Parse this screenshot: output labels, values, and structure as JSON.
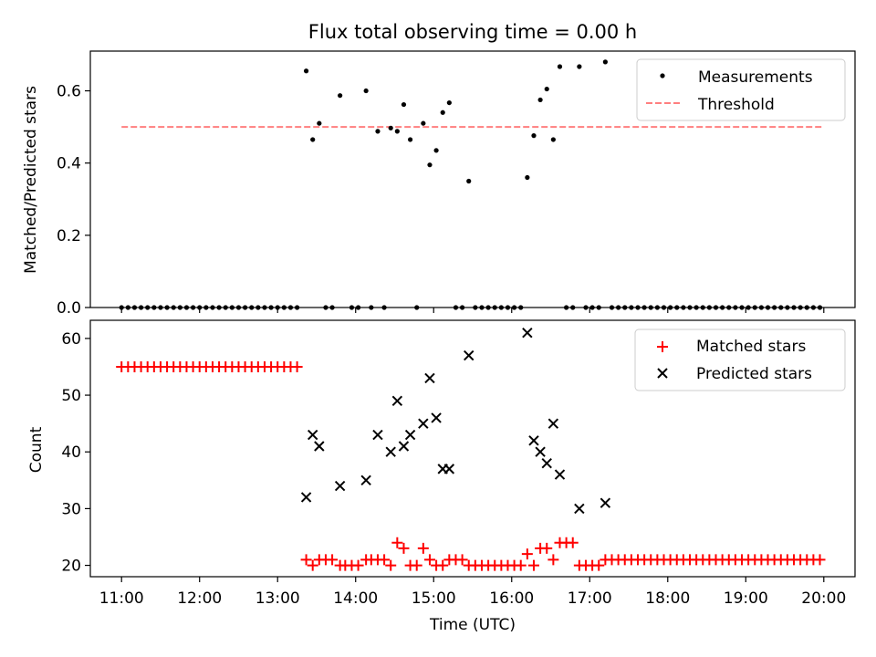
{
  "title": "Flux total observing time = 0.00 h",
  "colors": {
    "matched": "#ff0000",
    "predicted": "#000000",
    "measurement": "#000000",
    "threshold": "#ff7f7f"
  },
  "chart_data": [
    {
      "type": "scatter",
      "ylabel": "Matched/Predicted stars",
      "ylim": [
        0,
        0.71
      ],
      "yticks": [
        "0.0",
        "0.2",
        "0.4",
        "0.6"
      ],
      "xlim": [
        "10:36",
        "20:24"
      ],
      "legend_position": "top-right",
      "threshold": {
        "name": "Threshold",
        "value": 0.5,
        "x_range": [
          "11:00",
          "20:00"
        ]
      },
      "series": [
        {
          "name": "Measurements",
          "points_nonzero": [
            [
              "13:22",
              0.655
            ],
            [
              "13:27",
              0.465
            ],
            [
              "13:32",
              0.51
            ],
            [
              "13:48",
              0.587
            ],
            [
              "14:08",
              0.6
            ],
            [
              "14:17",
              0.488
            ],
            [
              "14:27",
              0.497
            ],
            [
              "14:32",
              0.488
            ],
            [
              "14:37",
              0.562
            ],
            [
              "14:42",
              0.465
            ],
            [
              "14:52",
              0.51
            ],
            [
              "14:57",
              0.395
            ],
            [
              "15:02",
              0.435
            ],
            [
              "15:07",
              0.54
            ],
            [
              "15:12",
              0.567
            ],
            [
              "15:27",
              0.35
            ],
            [
              "16:12",
              0.36
            ],
            [
              "16:17",
              0.476
            ],
            [
              "16:22",
              0.575
            ],
            [
              "16:27",
              0.605
            ],
            [
              "16:32",
              0.465
            ],
            [
              "16:37",
              0.667
            ],
            [
              "16:52",
              0.667
            ],
            [
              "17:12",
              0.68
            ]
          ],
          "zero_times": [
            "11:00",
            "11:05",
            "11:10",
            "11:15",
            "11:20",
            "11:25",
            "11:30",
            "11:35",
            "11:40",
            "11:45",
            "11:50",
            "11:55",
            "12:00",
            "12:05",
            "12:10",
            "12:15",
            "12:20",
            "12:25",
            "12:30",
            "12:35",
            "12:40",
            "12:45",
            "12:50",
            "12:55",
            "13:00",
            "13:05",
            "13:10",
            "13:15",
            "13:37",
            "13:42",
            "13:57",
            "14:02",
            "14:12",
            "14:22",
            "14:47",
            "15:17",
            "15:22",
            "15:32",
            "15:37",
            "15:42",
            "15:47",
            "15:52",
            "15:57",
            "16:02",
            "16:07",
            "16:42",
            "16:47",
            "16:57",
            "17:02",
            "17:07",
            "17:17",
            "17:22",
            "17:27",
            "17:32",
            "17:37",
            "17:42",
            "17:47",
            "17:52",
            "17:57",
            "18:02",
            "18:07",
            "18:12",
            "18:17",
            "18:22",
            "18:27",
            "18:32",
            "18:37",
            "18:42",
            "18:47",
            "18:52",
            "18:57",
            "19:02",
            "19:07",
            "19:12",
            "19:17",
            "19:22",
            "19:27",
            "19:32",
            "19:37",
            "19:42",
            "19:47",
            "19:52",
            "19:57"
          ]
        }
      ]
    },
    {
      "type": "scatter",
      "xlabel": "Time (UTC)",
      "ylabel": "Count",
      "ylim": [
        18,
        63.2
      ],
      "yticks": [
        "20",
        "30",
        "40",
        "50",
        "60"
      ],
      "xticks": [
        "11:00",
        "12:00",
        "13:00",
        "14:00",
        "15:00",
        "16:00",
        "17:00",
        "18:00",
        "19:00",
        "20:00"
      ],
      "xlim": [
        "10:36",
        "20:24"
      ],
      "legend_position": "top-right",
      "series": [
        {
          "name": "Matched stars",
          "constant_runs": [
            {
              "start": "11:00",
              "end": "13:15",
              "step_min": 5,
              "value": 55
            },
            {
              "start": "17:17",
              "end": "19:57",
              "step_min": 5,
              "value": 21
            }
          ],
          "points": [
            [
              "13:22",
              21
            ],
            [
              "13:27",
              20
            ],
            [
              "13:32",
              21
            ],
            [
              "13:37",
              21
            ],
            [
              "13:42",
              21
            ],
            [
              "13:48",
              20
            ],
            [
              "13:52",
              20
            ],
            [
              "13:57",
              20
            ],
            [
              "14:02",
              20
            ],
            [
              "14:08",
              21
            ],
            [
              "14:12",
              21
            ],
            [
              "14:17",
              21
            ],
            [
              "14:22",
              21
            ],
            [
              "14:27",
              20
            ],
            [
              "14:32",
              24
            ],
            [
              "14:37",
              23
            ],
            [
              "14:42",
              20
            ],
            [
              "14:47",
              20
            ],
            [
              "14:52",
              23
            ],
            [
              "14:57",
              21
            ],
            [
              "15:02",
              20
            ],
            [
              "15:07",
              20
            ],
            [
              "15:12",
              21
            ],
            [
              "15:17",
              21
            ],
            [
              "15:22",
              21
            ],
            [
              "15:27",
              20
            ],
            [
              "15:32",
              20
            ],
            [
              "15:37",
              20
            ],
            [
              "15:42",
              20
            ],
            [
              "15:47",
              20
            ],
            [
              "15:52",
              20
            ],
            [
              "15:57",
              20
            ],
            [
              "16:02",
              20
            ],
            [
              "16:07",
              20
            ],
            [
              "16:12",
              22
            ],
            [
              "16:17",
              20
            ],
            [
              "16:22",
              23
            ],
            [
              "16:27",
              23
            ],
            [
              "16:32",
              21
            ],
            [
              "16:37",
              24
            ],
            [
              "16:42",
              24
            ],
            [
              "16:47",
              24
            ],
            [
              "16:52",
              20
            ],
            [
              "16:57",
              20
            ],
            [
              "17:02",
              20
            ],
            [
              "17:07",
              20
            ],
            [
              "17:12",
              21
            ]
          ]
        },
        {
          "name": "Predicted stars",
          "points": [
            [
              "13:22",
              32
            ],
            [
              "13:27",
              43
            ],
            [
              "13:32",
              41
            ],
            [
              "13:48",
              34
            ],
            [
              "14:08",
              35
            ],
            [
              "14:17",
              43
            ],
            [
              "14:27",
              40
            ],
            [
              "14:32",
              49
            ],
            [
              "14:37",
              41
            ],
            [
              "14:42",
              43
            ],
            [
              "14:52",
              45
            ],
            [
              "14:57",
              53
            ],
            [
              "15:02",
              46
            ],
            [
              "15:07",
              37
            ],
            [
              "15:12",
              37
            ],
            [
              "15:27",
              57
            ],
            [
              "16:12",
              61
            ],
            [
              "16:17",
              42
            ],
            [
              "16:22",
              40
            ],
            [
              "16:27",
              38
            ],
            [
              "16:32",
              45
            ],
            [
              "16:37",
              36
            ],
            [
              "16:52",
              30
            ],
            [
              "17:12",
              31
            ]
          ]
        }
      ]
    }
  ]
}
